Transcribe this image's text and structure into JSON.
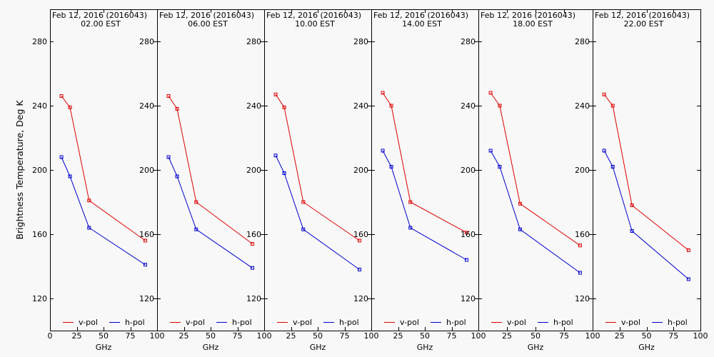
{
  "colors": {
    "background": "#f8f8f8",
    "axes": "#000000"
  },
  "chart_data": [
    {
      "type": "line",
      "title": "Feb 12, 2016 (2016043)",
      "subtitle": "02.00 EST",
      "xlabel": "GHz",
      "ylabel": "Brightness Temperature, Deg K",
      "xlim": [
        0,
        100
      ],
      "ylim": [
        100,
        300
      ],
      "xticks": [
        0,
        25,
        50,
        75,
        100
      ],
      "yticks": [
        120,
        160,
        200,
        240,
        280
      ],
      "grid": false,
      "legend": "bottom",
      "x": [
        10.7,
        18.7,
        36.5,
        89
      ],
      "series": [
        {
          "name": "v-pol",
          "color": "#e00000",
          "values": [
            246,
            239,
            181,
            156
          ]
        },
        {
          "name": "h-pol",
          "color": "#0000d0",
          "values": [
            208,
            196,
            164,
            141
          ]
        }
      ]
    },
    {
      "type": "line",
      "title": "Feb 12, 2016 (2016043)",
      "subtitle": "06.00 EST",
      "xlabel": "GHz",
      "xlim": [
        0,
        100
      ],
      "ylim": [
        100,
        300
      ],
      "xticks": [
        25,
        50,
        75,
        100
      ],
      "yticks": [
        120,
        160,
        200,
        240,
        280
      ],
      "grid": false,
      "legend": "bottom",
      "x": [
        10.7,
        18.7,
        36.5,
        89
      ],
      "series": [
        {
          "name": "v-pol",
          "color": "#e00000",
          "values": [
            246,
            238,
            180,
            154
          ]
        },
        {
          "name": "h-pol",
          "color": "#0000d0",
          "values": [
            208,
            196,
            163,
            139
          ]
        }
      ]
    },
    {
      "type": "line",
      "title": "Feb 12, 2016 (2016043)",
      "subtitle": "10.00 EST",
      "xlabel": "GHz",
      "xlim": [
        0,
        100
      ],
      "ylim": [
        100,
        300
      ],
      "xticks": [
        25,
        50,
        75,
        100
      ],
      "yticks": [
        120,
        160,
        200,
        240,
        280
      ],
      "grid": false,
      "legend": "bottom",
      "x": [
        10.7,
        18.7,
        36.5,
        89
      ],
      "series": [
        {
          "name": "v-pol",
          "color": "#e00000",
          "values": [
            247,
            239,
            180,
            156
          ]
        },
        {
          "name": "h-pol",
          "color": "#0000d0",
          "values": [
            209,
            198,
            163,
            138
          ]
        }
      ]
    },
    {
      "type": "line",
      "title": "Feb 12, 2016 (2016043)",
      "subtitle": "14.00 EST",
      "xlabel": "GHz",
      "xlim": [
        0,
        100
      ],
      "ylim": [
        100,
        300
      ],
      "xticks": [
        25,
        50,
        75,
        100
      ],
      "yticks": [
        120,
        160,
        200,
        240,
        280
      ],
      "grid": false,
      "legend": "bottom",
      "x": [
        10.7,
        18.7,
        36.5,
        89
      ],
      "series": [
        {
          "name": "v-pol",
          "color": "#e00000",
          "values": [
            248,
            240,
            180,
            161
          ]
        },
        {
          "name": "h-pol",
          "color": "#0000d0",
          "values": [
            212,
            202,
            164,
            144
          ]
        }
      ]
    },
    {
      "type": "line",
      "title": "Feb 12, 2016 (2016043)",
      "subtitle": "18.00 EST",
      "xlabel": "GHz",
      "xlim": [
        0,
        100
      ],
      "ylim": [
        100,
        300
      ],
      "xticks": [
        25,
        50,
        75,
        100
      ],
      "yticks": [
        120,
        160,
        200,
        240,
        280
      ],
      "grid": false,
      "legend": "bottom",
      "x": [
        10.7,
        18.7,
        36.5,
        89
      ],
      "series": [
        {
          "name": "v-pol",
          "color": "#e00000",
          "values": [
            248,
            240,
            179,
            153
          ]
        },
        {
          "name": "h-pol",
          "color": "#0000d0",
          "values": [
            212,
            202,
            163,
            136
          ]
        }
      ]
    },
    {
      "type": "line",
      "title": "Feb 12, 2016 (2016043)",
      "subtitle": "22.00 EST",
      "xlabel": "GHz",
      "xlim": [
        0,
        100
      ],
      "ylim": [
        100,
        300
      ],
      "xticks": [
        25,
        50,
        75,
        100
      ],
      "yticks": [
        120,
        160,
        200,
        240,
        280
      ],
      "grid": false,
      "legend": "bottom",
      "x": [
        10.7,
        18.7,
        36.5,
        89
      ],
      "series": [
        {
          "name": "v-pol",
          "color": "#e00000",
          "values": [
            247,
            240,
            178,
            150
          ]
        },
        {
          "name": "h-pol",
          "color": "#0000d0",
          "values": [
            212,
            202,
            162,
            132
          ]
        }
      ]
    }
  ]
}
